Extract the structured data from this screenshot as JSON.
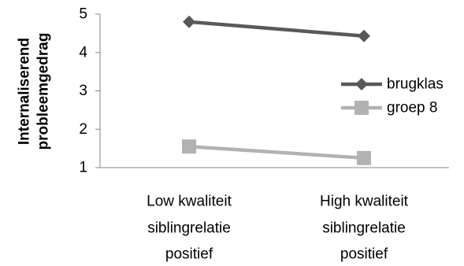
{
  "chart_data": {
    "type": "line",
    "categories": [
      [
        "Low kwaliteit",
        "siblingrelatie",
        "positief"
      ],
      [
        "High kwaliteit",
        "siblingrelatie",
        "positief"
      ]
    ],
    "series": [
      {
        "name": "brugklas",
        "values": [
          4.8,
          4.43
        ],
        "color": "#595959",
        "marker": "diamond"
      },
      {
        "name": "groep 8",
        "values": [
          1.55,
          1.25
        ],
        "color": "#b2b2b2",
        "marker": "square"
      }
    ],
    "ylabel": [
      "Internaliserend",
      "probleemgedrag"
    ],
    "ylim": [
      1,
      5
    ],
    "yticks": [
      "1",
      "2",
      "3",
      "4",
      "5"
    ],
    "legend_position": "right",
    "grid": false
  }
}
